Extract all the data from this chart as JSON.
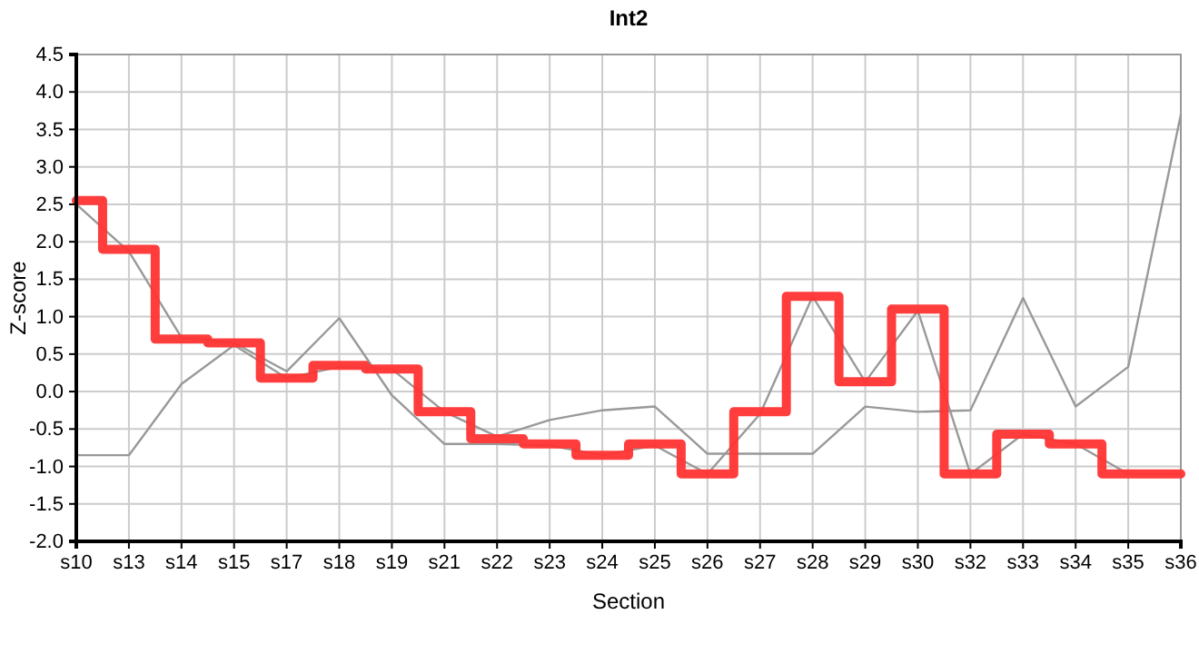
{
  "chart_data": {
    "type": "line",
    "title": "Int2",
    "xlabel": "Section",
    "ylabel": "Z-score",
    "categories": [
      "s10",
      "s13",
      "s14",
      "s15",
      "s17",
      "s18",
      "s19",
      "s21",
      "s22",
      "s23",
      "s24",
      "s25",
      "s26",
      "s27",
      "s28",
      "s29",
      "s30",
      "s32",
      "s33",
      "s34",
      "s35",
      "s36"
    ],
    "series": [
      {
        "color": "#999999",
        "values": [
          -0.85,
          -0.85,
          0.1,
          0.62,
          0.18,
          0.33,
          0.3,
          -0.27,
          -0.6,
          -0.38,
          -0.25,
          -0.2,
          -0.83,
          -0.83,
          -0.83,
          -0.2,
          -0.27,
          -0.25,
          1.25,
          -0.2,
          0.33,
          3.7
        ]
      },
      {
        "color": "#999999",
        "values": [
          2.5,
          1.87,
          0.72,
          0.65,
          0.27,
          0.98,
          -0.05,
          -0.7,
          -0.7,
          -0.72,
          -0.85,
          -0.72,
          -1.1,
          -0.3,
          1.27,
          0.13,
          1.08,
          -1.1,
          -0.57,
          -0.7,
          -1.1,
          -1.1
        ]
      },
      {
        "type": "step",
        "color": "#ff3333",
        "values": [
          2.55,
          1.9,
          0.7,
          0.65,
          0.18,
          0.35,
          0.3,
          -0.27,
          -0.63,
          -0.7,
          -0.85,
          -0.7,
          -1.1,
          -0.27,
          1.27,
          0.13,
          1.1,
          -1.1,
          -0.57,
          -0.7,
          -1.1,
          -1.1
        ]
      }
    ],
    "ylim": [
      -2,
      4.5
    ],
    "yticks": [
      {
        "value": -2,
        "label": "-2.0"
      },
      {
        "value": -1.5,
        "label": "-1.5"
      },
      {
        "value": -1,
        "label": "-1.0"
      },
      {
        "value": -0.5,
        "label": "-0.5"
      },
      {
        "value": 0,
        "label": "0.0"
      },
      {
        "value": 0.5,
        "label": "0.5"
      },
      {
        "value": 1,
        "label": "1.0"
      },
      {
        "value": 1.5,
        "label": "1.5"
      },
      {
        "value": 2,
        "label": "2.0"
      },
      {
        "value": 2.5,
        "label": "2.5"
      },
      {
        "value": 3,
        "label": "3.0"
      },
      {
        "value": 3.5,
        "label": "3.5"
      },
      {
        "value": 4,
        "label": "4.0"
      },
      {
        "value": 4.5,
        "label": "4.5"
      }
    ],
    "grid": true
  }
}
